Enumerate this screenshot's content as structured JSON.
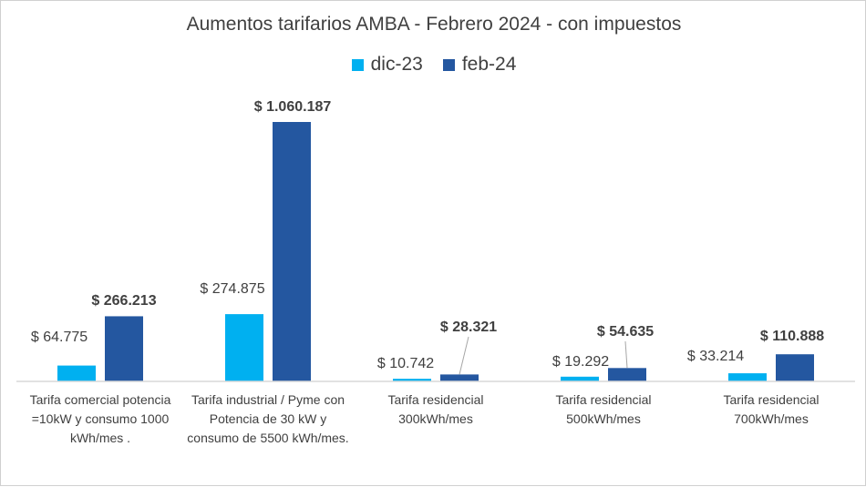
{
  "chart_data": {
    "type": "bar",
    "title": "Aumentos tarifarios AMBA - Febrero 2024 - con impuestos",
    "categories": [
      "Tarifa comercial potencia =10kW y consumo 1000 kWh/mes .",
      "Tarifa industrial / Pyme con Potencia de 30 kW y consumo de 5500 kWh/mes.",
      "Tarifa residencial 300kWh/mes",
      "Tarifa residencial 500kWh/mes",
      "Tarifa residencial 700kWh/mes"
    ],
    "series": [
      {
        "name": "dic-23",
        "color": "#00B0F0",
        "values": [
          64775,
          274875,
          10742,
          19292,
          33214
        ],
        "labels": [
          "$ 64.775",
          "$ 274.875",
          "$ 10.742",
          "$ 19.292",
          "$ 33.214"
        ]
      },
      {
        "name": "feb-24",
        "color": "#2457A0",
        "values": [
          266213,
          1060187,
          28321,
          54635,
          110888
        ],
        "labels": [
          "$ 266.213",
          "$ 1.060.187",
          "$ 28.321",
          "$ 54.635",
          "$ 110.888"
        ]
      }
    ],
    "xlabel": "",
    "ylabel": "",
    "ylim": [
      0,
      1060187
    ],
    "grid": false,
    "legend": "top-center"
  }
}
